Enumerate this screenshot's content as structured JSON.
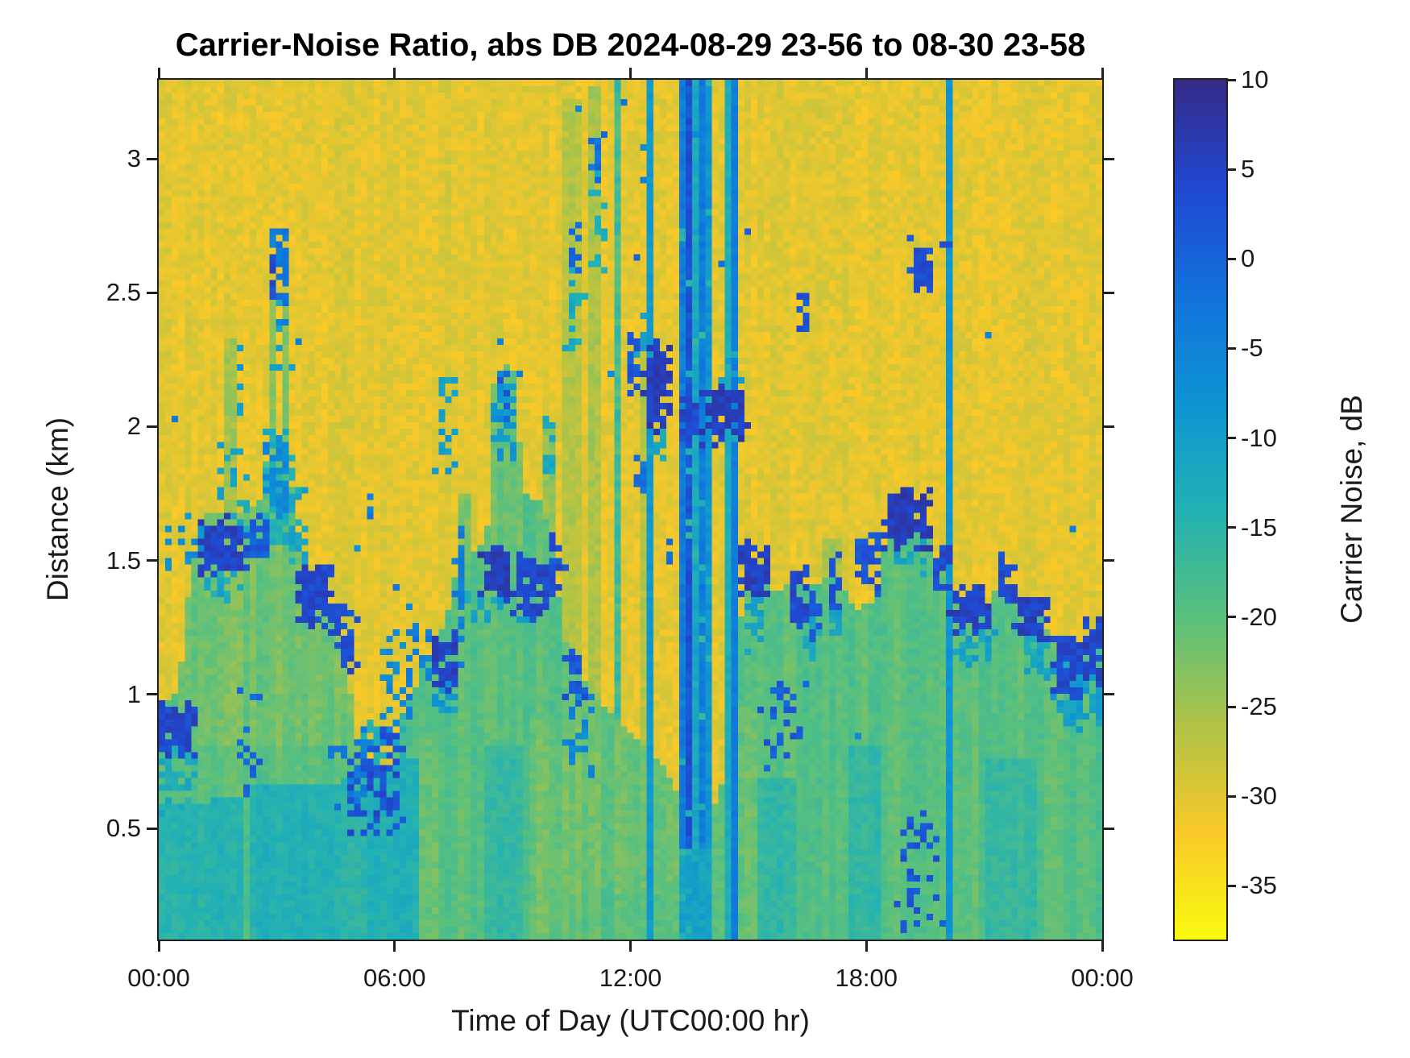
{
  "chart_data": {
    "type": "heatmap",
    "title": "Carrier-Noise Ratio, abs DB 2024-08-29 23-56 to 08-30 23-58",
    "xlabel": "Time of Day (UTC00:00 hr)",
    "ylabel": "Distance (km)",
    "colorbar_label": "Carrier Noise, dB",
    "x_range_hours": [
      0,
      24
    ],
    "y_range_km": [
      0.085,
      3.295
    ],
    "value_range_db": [
      -38,
      10
    ],
    "grid_on": false,
    "x_ticks": [
      {
        "t": 0,
        "label": "00:00"
      },
      {
        "t": 6,
        "label": "06:00"
      },
      {
        "t": 12,
        "label": "12:00"
      },
      {
        "t": 18,
        "label": "18:00"
      },
      {
        "t": 24,
        "label": "00:00"
      }
    ],
    "y_ticks": [
      {
        "km": 0.5,
        "label": "0.5"
      },
      {
        "km": 1,
        "label": "1"
      },
      {
        "km": 1.5,
        "label": "1.5"
      },
      {
        "km": 2,
        "label": "2"
      },
      {
        "km": 2.5,
        "label": "2.5"
      },
      {
        "km": 3,
        "label": "3"
      }
    ],
    "colorbar_ticks": [
      {
        "v": 10,
        "label": "10"
      },
      {
        "v": 5,
        "label": "5"
      },
      {
        "v": 0,
        "label": "0"
      },
      {
        "v": -5,
        "label": "-5"
      },
      {
        "v": -10,
        "label": "-10"
      },
      {
        "v": -15,
        "label": "-15"
      },
      {
        "v": -20,
        "label": "-20"
      },
      {
        "v": -25,
        "label": "-25"
      },
      {
        "v": -30,
        "label": "-30"
      },
      {
        "v": -35,
        "label": "-35"
      }
    ],
    "colormap": {
      "name": "parula-reversed-values",
      "note": "value +10 dB maps to stop 0 (dark navy), value -38 dB maps to stop 1 (yellow)",
      "stops": [
        [
          0,
          "#352a87"
        ],
        [
          0.125,
          "#2048d1"
        ],
        [
          0.25,
          "#1172dc"
        ],
        [
          0.375,
          "#0e93d3"
        ],
        [
          0.5,
          "#22b1b4"
        ],
        [
          0.625,
          "#59c07e"
        ],
        [
          0.75,
          "#afc346"
        ],
        [
          0.875,
          "#f9c829"
        ],
        [
          1,
          "#f9fb0e"
        ]
      ]
    },
    "features": {
      "grid": {
        "nx": 145,
        "ny": 133,
        "seed": 42
      },
      "background": {
        "base": -30.2,
        "sigma": 1.7,
        "col_sigma": 0.7
      },
      "layer": {
        "base": -19.8,
        "sigma": 1.3,
        "col_sigma": 1.4
      },
      "boundary_top_km": [
        [
          0,
          0.95
        ],
        [
          0.5,
          1.0
        ],
        [
          0.8,
          1.45
        ],
        [
          1.2,
          1.68
        ],
        [
          2.0,
          1.66
        ],
        [
          2.6,
          1.72
        ],
        [
          2.75,
          1.9
        ],
        [
          3.3,
          1.92
        ],
        [
          3.5,
          1.6
        ],
        [
          3.7,
          1.45
        ],
        [
          4.3,
          1.38
        ],
        [
          4.7,
          1.25
        ],
        [
          5.0,
          0.85
        ],
        [
          5.4,
          0.68
        ],
        [
          5.9,
          0.75
        ],
        [
          6.3,
          0.95
        ],
        [
          6.8,
          1.12
        ],
        [
          7.3,
          1.28
        ],
        [
          7.6,
          1.48
        ],
        [
          8.1,
          1.55
        ],
        [
          8.35,
          1.6
        ],
        [
          8.5,
          2.15
        ],
        [
          9.0,
          2.25
        ],
        [
          9.3,
          1.75
        ],
        [
          9.7,
          1.72
        ],
        [
          10.05,
          1.55
        ],
        [
          10.3,
          1.2
        ],
        [
          10.8,
          1.05
        ],
        [
          11.3,
          0.95
        ],
        [
          11.8,
          0.88
        ],
        [
          12.3,
          0.82
        ],
        [
          12.8,
          0.75
        ],
        [
          13.2,
          0.62
        ],
        [
          13.8,
          0.55
        ],
        [
          14.25,
          0.6
        ],
        [
          14.6,
          0.9
        ],
        [
          14.9,
          1.45
        ],
        [
          15.3,
          1.5
        ],
        [
          15.7,
          1.38
        ],
        [
          16.2,
          1.42
        ],
        [
          16.7,
          1.4
        ],
        [
          17.2,
          1.45
        ],
        [
          17.7,
          1.32
        ],
        [
          18.2,
          1.35
        ],
        [
          18.6,
          1.62
        ],
        [
          19.1,
          1.7
        ],
        [
          19.5,
          1.62
        ],
        [
          19.8,
          1.5
        ],
        [
          20.3,
          1.38
        ],
        [
          21.0,
          1.32
        ],
        [
          21.5,
          1.45
        ],
        [
          22.0,
          1.3
        ],
        [
          22.5,
          1.28
        ],
        [
          22.9,
          1.15
        ],
        [
          23.3,
          1.1
        ],
        [
          23.6,
          1.22
        ],
        [
          24,
          1.15
        ]
      ],
      "teal_zones": [
        [
          0,
          1.3,
          0.6,
          -15
        ],
        [
          1.3,
          2.2,
          0.62,
          -14
        ],
        [
          2.4,
          4.6,
          0.66,
          -14
        ],
        [
          4.7,
          5.3,
          0.7,
          -15
        ],
        [
          5.3,
          6.6,
          0.75,
          -14
        ],
        [
          8.3,
          9.3,
          0.8,
          -16
        ],
        [
          15.3,
          16.3,
          0.7,
          -16
        ],
        [
          17.5,
          18.3,
          0.8,
          -16
        ],
        [
          21,
          22.3,
          0.75,
          -16.5
        ]
      ],
      "olive_zones": [
        [
          0.55,
          4.6,
          0.82,
          1.72,
          -21.5
        ],
        [
          4.6,
          5.2,
          0.92,
          1.42,
          -22
        ],
        [
          8.45,
          9.3,
          1.55,
          2.2,
          -21
        ],
        [
          10.35,
          13.2,
          0.25,
          1.05,
          -21
        ],
        [
          14.25,
          15.25,
          0,
          0.95,
          -21.5
        ],
        [
          6.55,
          7.1,
          0,
          0.85,
          -21.5
        ],
        [
          9.45,
          10.35,
          0,
          0.9,
          -21.5
        ]
      ],
      "plumes": [
        [
          1.62,
          1.95,
          2.32,
          -24,
          1.8
        ],
        [
          2.82,
          3.02,
          2.47,
          -23,
          1.5
        ],
        [
          3.12,
          3.32,
          2.47,
          -23,
          1.5
        ],
        [
          7.55,
          7.9,
          1.75,
          -22,
          2
        ],
        [
          9.78,
          10.12,
          2.0,
          -24,
          1.8
        ],
        [
          10.33,
          10.78,
          3.22,
          -26,
          1.6
        ],
        [
          10.98,
          11.32,
          3.26,
          -25,
          1.8
        ],
        [
          12.33,
          12.62,
          2.35,
          -26,
          1.6
        ],
        [
          16.9,
          17.45,
          1.58,
          -25,
          1.6
        ],
        [
          11.55,
          11.82,
          3.29,
          -17,
          3
        ]
      ],
      "rain_band": {
        "t0": 13.17,
        "t1": 14.07,
        "base": -4,
        "sigma": 2.2,
        "stripes": [
          [
            13.17,
            13.24,
            -9
          ],
          [
            13.34,
            13.63,
            2.5
          ],
          [
            13.63,
            13.73,
            -12
          ],
          [
            13.97,
            14.07,
            -8
          ]
        ],
        "green_below_km": 0.42,
        "green_below_v": -11,
        "fleck_p": 0.05,
        "fleck_v": -15
      },
      "vlines": [
        [
          12.52,
          0.1,
          -9
        ],
        [
          14.52,
          0.09,
          -13
        ],
        [
          14.68,
          0.08,
          -4
        ],
        [
          19.5,
          0.08,
          -14
        ],
        [
          20.08,
          0.12,
          -8
        ]
      ],
      "blobs": [
        [
          0.0,
          0.85,
          0.58,
          0.78,
          -13,
          0.5
        ],
        [
          0.18,
          0.38,
          1.48,
          1.64,
          -8,
          0.6
        ],
        [
          0.55,
          1.15,
          1.48,
          1.66,
          -7,
          0.55
        ],
        [
          1.2,
          2.1,
          1.36,
          1.48,
          -12,
          0.6
        ],
        [
          1.6,
          2.25,
          1.64,
          1.95,
          -11,
          0.45
        ],
        [
          1.95,
          2.2,
          1.9,
          2.38,
          -9,
          0.5
        ],
        [
          2.75,
          3.38,
          1.55,
          1.95,
          -13,
          0.75
        ],
        [
          2.78,
          3.32,
          1.68,
          1.94,
          -6,
          0.6
        ],
        [
          2.8,
          3.35,
          2.2,
          2.48,
          -12,
          0.35
        ],
        [
          3.35,
          3.75,
          1.5,
          1.78,
          -12,
          0.5
        ],
        [
          5.3,
          6.35,
          0.68,
          0.92,
          -13,
          0.5
        ],
        [
          5.7,
          6.4,
          0.85,
          1.2,
          -6,
          0.4
        ],
        [
          6.3,
          6.85,
          1.0,
          1.3,
          -4,
          0.5
        ],
        [
          6.95,
          7.55,
          0.92,
          1.05,
          -9,
          0.5
        ],
        [
          7.55,
          7.82,
          1.15,
          1.68,
          -4,
          0.7
        ],
        [
          7.1,
          7.55,
          1.85,
          2.2,
          -10,
          0.4
        ],
        [
          8.5,
          9.1,
          1.9,
          2.2,
          -8,
          0.5
        ],
        [
          8.0,
          9.4,
          1.28,
          1.38,
          -11,
          0.4
        ],
        [
          9.85,
          10.1,
          1.78,
          2.02,
          -12,
          0.6
        ],
        [
          10.4,
          10.8,
          2.3,
          2.62,
          -13,
          0.45
        ],
        [
          10.45,
          10.72,
          2.55,
          2.75,
          0,
          0.5
        ],
        [
          11.02,
          11.32,
          2.6,
          2.98,
          -14,
          0.45
        ],
        [
          11.0,
          11.3,
          2.9,
          3.1,
          -2,
          0.5
        ],
        [
          10.4,
          11.05,
          0.72,
          0.98,
          -6,
          0.35
        ],
        [
          12.2,
          12.5,
          2.2,
          2.42,
          -11,
          0.5
        ],
        [
          12.45,
          12.95,
          1.88,
          2.02,
          -12,
          0.6
        ],
        [
          14.35,
          14.9,
          1.95,
          2.25,
          -11,
          0.4
        ],
        [
          14.9,
          15.4,
          1.18,
          1.38,
          -11,
          0.5
        ],
        [
          16.1,
          16.9,
          1.14,
          1.28,
          -12,
          0.5
        ],
        [
          17.0,
          17.4,
          1.18,
          1.34,
          -11,
          0.5
        ],
        [
          18.6,
          19.4,
          1.44,
          1.58,
          -11,
          0.5
        ],
        [
          20.3,
          21.2,
          1.12,
          1.26,
          -11,
          0.6
        ],
        [
          21.9,
          22.6,
          1.08,
          1.22,
          -12,
          0.6
        ],
        [
          22.85,
          24,
          0.88,
          1.12,
          -10,
          0.8
        ],
        [
          0.0,
          0.9,
          0.76,
          0.95,
          4,
          0.85
        ],
        [
          1.1,
          2.25,
          1.46,
          1.64,
          5,
          0.9
        ],
        [
          2.25,
          2.78,
          1.5,
          1.68,
          1,
          0.7
        ],
        [
          2.84,
          3.04,
          2.46,
          2.64,
          4,
          0.8
        ],
        [
          3.06,
          3.3,
          2.4,
          2.72,
          -3,
          0.75
        ],
        [
          2.78,
          3.02,
          2.6,
          2.72,
          -5,
          0.7
        ],
        [
          3.6,
          4.45,
          1.26,
          1.48,
          4,
          0.85
        ],
        [
          4.45,
          5.0,
          1.1,
          1.32,
          3,
          0.7
        ],
        [
          4.9,
          6.2,
          0.5,
          0.85,
          3,
          0.4
        ],
        [
          5.28,
          5.52,
          1.66,
          1.78,
          -4,
          0.7
        ],
        [
          6.9,
          7.6,
          1.03,
          1.22,
          5,
          0.8
        ],
        [
          8.15,
          9.0,
          1.36,
          1.54,
          6,
          0.9
        ],
        [
          9.05,
          9.9,
          1.3,
          1.5,
          4,
          0.85
        ],
        [
          8.6,
          8.95,
          2.0,
          2.2,
          1,
          0.5
        ],
        [
          9.9,
          10.3,
          1.35,
          1.6,
          3,
          0.6
        ],
        [
          10.3,
          10.8,
          0.98,
          1.18,
          2,
          0.6
        ],
        [
          11.9,
          12.18,
          2.14,
          2.38,
          2,
          0.7
        ],
        [
          12.05,
          12.38,
          1.76,
          1.94,
          -2,
          0.6
        ],
        [
          12.38,
          13.05,
          2.0,
          2.3,
          6,
          0.85
        ],
        [
          12.88,
          13.12,
          1.46,
          1.62,
          -1,
          0.7
        ],
        [
          13.32,
          13.78,
          1.94,
          2.12,
          4,
          0.8
        ],
        [
          13.9,
          14.88,
          1.95,
          2.15,
          6,
          0.85
        ],
        [
          14.85,
          15.5,
          1.35,
          1.55,
          5,
          0.9
        ],
        [
          15.4,
          16.45,
          0.76,
          1.04,
          1,
          0.3
        ],
        [
          16.08,
          16.5,
          1.27,
          1.46,
          4,
          0.85
        ],
        [
          16.32,
          16.52,
          2.36,
          2.5,
          2,
          0.8
        ],
        [
          16.55,
          16.88,
          1.2,
          1.38,
          2,
          0.7
        ],
        [
          17.0,
          17.38,
          1.3,
          1.5,
          3,
          0.8
        ],
        [
          17.75,
          18.35,
          1.38,
          1.58,
          2,
          0.7
        ],
        [
          18.5,
          19.55,
          1.56,
          1.74,
          6,
          0.9
        ],
        [
          18.85,
          19.95,
          0.08,
          0.5,
          2,
          0.3
        ],
        [
          19.15,
          19.75,
          2.48,
          2.68,
          3,
          0.7
        ],
        [
          19.7,
          20.15,
          1.4,
          1.56,
          4,
          0.8
        ],
        [
          20.2,
          21.15,
          1.24,
          1.4,
          5,
          0.85
        ],
        [
          21.35,
          21.75,
          1.36,
          1.52,
          3,
          0.75
        ],
        [
          21.85,
          22.65,
          1.2,
          1.36,
          5,
          0.85
        ],
        [
          22.8,
          23.45,
          1.0,
          1.2,
          4,
          0.85
        ],
        [
          23.5,
          24,
          1.06,
          1.28,
          5,
          0.9
        ],
        [
          2.05,
          2.6,
          0.62,
          1.06,
          0,
          0.25
        ],
        [
          4.35,
          5.35,
          0.58,
          0.86,
          -4,
          0.3
        ]
      ],
      "specks": [
        [
          15.05,
          2.72,
          1
        ],
        [
          16.42,
          2.42,
          2
        ],
        [
          12.18,
          2.62,
          0
        ],
        [
          11.08,
          3.06,
          -1
        ],
        [
          10.52,
          2.64,
          0
        ],
        [
          0.45,
          2.02,
          -3
        ],
        [
          5.1,
          1.55,
          -8
        ],
        [
          9.15,
          2.2,
          -4
        ],
        [
          17.78,
          0.84,
          -6
        ],
        [
          21.1,
          2.35,
          -5
        ],
        [
          3.55,
          2.32,
          -4
        ],
        [
          6.12,
          1.4,
          -3
        ],
        [
          19.98,
          2.69,
          3
        ],
        [
          23.3,
          1.62,
          -4
        ],
        [
          11.9,
          3.22,
          -2
        ],
        [
          12.4,
          2.92,
          -5
        ],
        [
          16.0,
          0.96,
          -1
        ],
        [
          8.62,
          2.32,
          -5
        ],
        [
          20.08,
          2.69,
          3
        ],
        [
          13.62,
          3.1,
          -6
        ],
        [
          14.3,
          2.6,
          -2
        ],
        [
          10.75,
          3.18,
          -6
        ],
        [
          11.45,
          2.2,
          -7
        ],
        [
          12.3,
          3.05,
          -7
        ],
        [
          2.08,
          2.3,
          -9
        ]
      ]
    }
  }
}
